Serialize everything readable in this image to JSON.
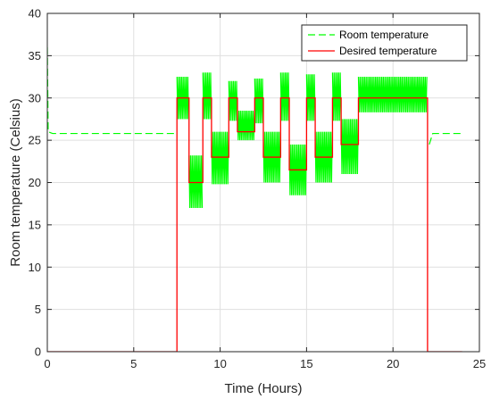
{
  "chart_data": {
    "type": "line",
    "title": "",
    "xlabel": "Time (Hours)",
    "ylabel": "Room temperature (Celsius)",
    "xlim": [
      0,
      25
    ],
    "ylim": [
      0,
      40
    ],
    "xticks": [
      0,
      5,
      10,
      15,
      20,
      25
    ],
    "yticks": [
      0,
      5,
      10,
      15,
      20,
      25,
      30,
      35,
      40
    ],
    "grid": true,
    "legend_position": "top-right",
    "series": [
      {
        "name": "Room temperature",
        "color": "#00ff00",
        "style": "dashed",
        "x": [
          0,
          0.05,
          0.3,
          7.5,
          7.5,
          22.0,
          22.1,
          22.3,
          24.0
        ],
        "y": [
          36,
          26,
          25.8,
          25.8,
          null,
          null,
          24.5,
          25.8,
          25.8
        ]
      },
      {
        "name": "Desired temperature",
        "color": "#ff0000",
        "style": "solid",
        "x": [
          0,
          7.5,
          7.5,
          8.2,
          8.2,
          9.0,
          9.0,
          9.5,
          9.5,
          10.5,
          10.5,
          11.0,
          11.0,
          12.0,
          12.0,
          12.5,
          12.5,
          13.5,
          13.5,
          14.0,
          14.0,
          15.0,
          15.0,
          15.5,
          15.5,
          16.5,
          16.5,
          17.0,
          17.0,
          18.0,
          18.0,
          22.0,
          22.0,
          24.0
        ],
        "y": [
          0,
          0,
          30,
          30,
          20,
          20,
          30,
          30,
          23,
          23,
          30,
          30,
          26,
          26,
          30,
          30,
          23,
          23,
          30,
          30,
          21.5,
          21.5,
          30,
          30,
          23,
          23,
          30,
          30,
          24.5,
          24.5,
          30,
          30,
          0,
          0
        ]
      }
    ],
    "oscillation_bands": [
      {
        "x": [
          7.5,
          8.2
        ],
        "y": [
          27.5,
          32.5
        ]
      },
      {
        "x": [
          8.2,
          9.0
        ],
        "y": [
          17.0,
          23.2
        ]
      },
      {
        "x": [
          9.0,
          9.5
        ],
        "y": [
          27.5,
          33.0
        ]
      },
      {
        "x": [
          9.5,
          10.5
        ],
        "y": [
          19.8,
          26.0
        ]
      },
      {
        "x": [
          10.5,
          11.0
        ],
        "y": [
          27.3,
          32.0
        ]
      },
      {
        "x": [
          11.0,
          12.0
        ],
        "y": [
          25.0,
          28.5
        ]
      },
      {
        "x": [
          12.0,
          12.5
        ],
        "y": [
          27.0,
          32.3
        ]
      },
      {
        "x": [
          12.5,
          13.5
        ],
        "y": [
          20.0,
          26.0
        ]
      },
      {
        "x": [
          13.5,
          14.0
        ],
        "y": [
          27.3,
          33.0
        ]
      },
      {
        "x": [
          14.0,
          15.0
        ],
        "y": [
          18.5,
          24.5
        ]
      },
      {
        "x": [
          15.0,
          15.5
        ],
        "y": [
          27.3,
          32.8
        ]
      },
      {
        "x": [
          15.5,
          16.5
        ],
        "y": [
          20.0,
          26.0
        ]
      },
      {
        "x": [
          16.5,
          17.0
        ],
        "y": [
          27.3,
          33.0
        ]
      },
      {
        "x": [
          17.0,
          18.0
        ],
        "y": [
          21.0,
          27.5
        ]
      },
      {
        "x": [
          18.0,
          22.0
        ],
        "y": [
          28.3,
          32.5
        ]
      }
    ]
  }
}
